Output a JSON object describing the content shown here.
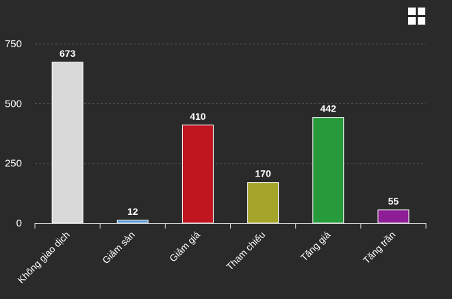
{
  "chart_data": {
    "type": "bar",
    "categories": [
      "Không giao dịch",
      "Giảm sàn",
      "Giảm giá",
      "Tham chiếu",
      "Tăng giá",
      "Tăng trần"
    ],
    "values": [
      673,
      12,
      410,
      170,
      442,
      55
    ],
    "colors": [
      "#d9d9d9",
      "#5b9bd5",
      "#c0161f",
      "#a6a52b",
      "#279a3b",
      "#8e1e97"
    ],
    "yticks": [
      0,
      250,
      500,
      750
    ],
    "ylim": [
      0,
      750
    ],
    "grid": true,
    "title": "",
    "xlabel": "",
    "ylabel": ""
  },
  "toolbar": {
    "menu_icon": "grid-menu-icon"
  }
}
